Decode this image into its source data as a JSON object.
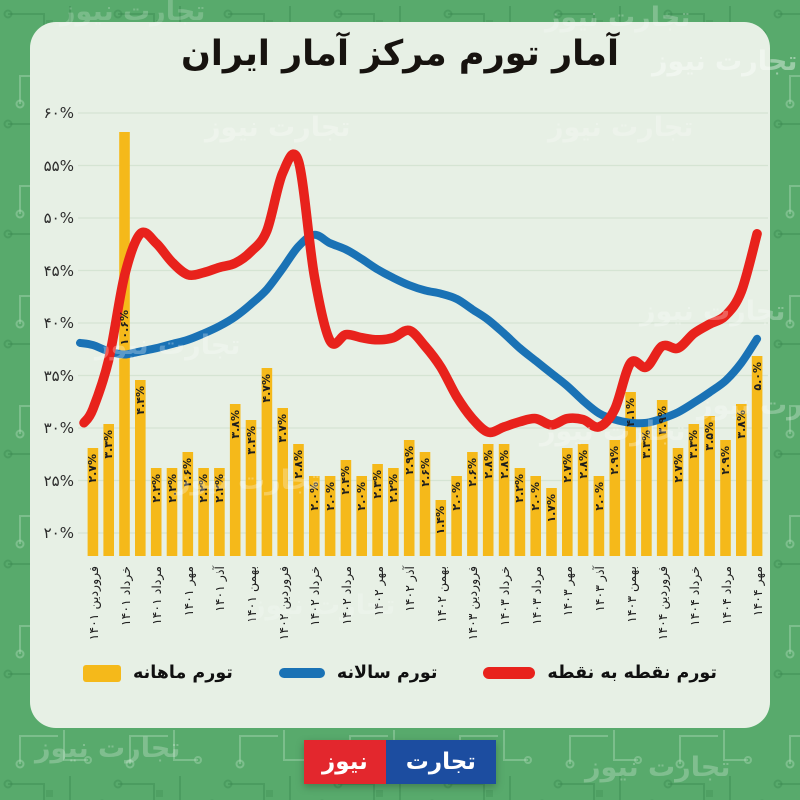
{
  "title": "آمار تورم مرکز آمار ایران",
  "watermark_text": "تجارت نیوز",
  "logo": {
    "news": "نیوز",
    "tejarat": "تجارت"
  },
  "legend": [
    {
      "label": "تورم ماهانه",
      "swatch": "bar",
      "color": "#f5b91a"
    },
    {
      "label": "تورم سالانه",
      "swatch": "line",
      "color": "#1a72b5"
    },
    {
      "label": "تورم نقطه به نقطه",
      "swatch": "line",
      "color": "#e8221c"
    }
  ],
  "colors": {
    "background": "#58aa6c",
    "panel": "#e7f0e5",
    "gridline": "#d5e4d3",
    "bar": "#f5b91a",
    "annual_line": "#1a72b5",
    "point_line": "#e8221c",
    "logo_red": "#e3272d",
    "logo_blue": "#1c4da0"
  },
  "chart_data": {
    "type": "combo-bar-line",
    "title": "آمار تورم مرکز آمار ایران",
    "months_count": 43,
    "x_range_note": "monthly, Farvardin 1401 through Mehr 1404; tick label under every 2nd bar",
    "x_tick_every": 2,
    "x_tick_labels": [
      "فروردین ۱۴۰۱",
      "خرداد ۱۴۰۱",
      "مرداد ۱۴۰۱",
      "مهر ۱۴۰۱",
      "آذر ۱۴۰۱",
      "بهمن ۱۴۰۱",
      "فروردین ۱۴۰۲",
      "خرداد ۱۴۰۲",
      "مرداد ۱۴۰۲",
      "مهر ۱۴۰۲",
      "آذر ۱۴۰۲",
      "بهمن ۱۴۰۲",
      "فروردین ۱۴۰۳",
      "خرداد ۱۴۰۳",
      "مرداد ۱۴۰۳",
      "مهر ۱۴۰۳",
      "آذر ۱۴۰۳",
      "بهمن ۱۴۰۳",
      "فروردین ۱۴۰۴",
      "خرداد ۱۴۰۴",
      "مرداد ۱۴۰۴",
      "مهر ۱۴۰۴"
    ],
    "y_axis": {
      "min": 20,
      "max": 60,
      "step": 5,
      "grid": true,
      "legend_position": "bottom",
      "tick_labels": [
        "۶۰%",
        "۵۵%",
        "۵۰%",
        "۴۵%",
        "۴۰%",
        "۳۵%",
        "۳۰%",
        "۲۵%",
        "۲۰%"
      ],
      "tick_values": [
        60,
        55,
        50,
        45,
        40,
        35,
        30,
        25,
        20
      ]
    },
    "bar_labels": [
      "۲.۷%",
      "۳.۳%",
      "۱۰.۶%",
      "۴.۴%",
      "۲.۲%",
      "۲.۲%",
      "۲.۶%",
      "۲.۲%",
      "۲.۲%",
      "۳.۸%",
      "۳.۴%",
      "۴.۷%",
      "۳.۷%",
      "۲.۸%",
      "۲.۰%",
      "۲.۰%",
      "۲.۴%",
      "۲.۰%",
      "۲.۳%",
      "۲.۲%",
      "۲.۹%",
      "۲.۶%",
      "۱.۴%",
      "۲.۰%",
      "۲.۶%",
      "۲.۸%",
      "۲.۸%",
      "۲.۲%",
      "۲.۰%",
      "۱.۷%",
      "۲.۷%",
      "۲.۸%",
      "۲.۰%",
      "۲.۹%",
      "۴.۱%",
      "۳.۳%",
      "۳.۹%",
      "۲.۷%",
      "۳.۳%",
      "۳.۵%",
      "۲.۹%",
      "۳.۸%",
      "۵.۰%"
    ],
    "series": [
      {
        "name": "تورم ماهانه",
        "type": "bar",
        "color": "#f5b91a",
        "values": [
          2.7,
          3.3,
          10.6,
          4.4,
          2.2,
          2.2,
          2.6,
          2.2,
          2.2,
          3.8,
          3.4,
          4.7,
          3.7,
          2.8,
          2.0,
          2.0,
          2.4,
          2.0,
          2.3,
          2.2,
          2.9,
          2.6,
          1.4,
          2.0,
          2.6,
          2.8,
          2.8,
          2.2,
          2.0,
          1.7,
          2.7,
          2.8,
          2.0,
          2.9,
          4.1,
          3.3,
          3.9,
          2.7,
          3.3,
          3.5,
          2.9,
          3.8,
          5.0
        ]
      },
      {
        "name": "تورم سالانه",
        "type": "line",
        "color": "#1a72b5",
        "values": [
          37.9,
          37.3,
          37.0,
          37.3,
          37.6,
          38.0,
          38.4,
          39.0,
          39.7,
          40.6,
          41.8,
          43.2,
          45.2,
          47.3,
          48.4,
          47.6,
          47.0,
          46.1,
          45.1,
          44.3,
          43.6,
          43.1,
          42.8,
          42.3,
          41.3,
          40.3,
          39.0,
          37.6,
          36.4,
          35.2,
          34.0,
          32.6,
          31.4,
          30.8,
          30.5,
          30.5,
          30.9,
          31.5,
          32.4,
          33.4,
          34.5,
          36.2,
          38.5
        ]
      },
      {
        "name": "تورم نقطه به نقطه",
        "type": "line",
        "color": "#e8221c",
        "values": [
          31.8,
          36.5,
          44.5,
          48.5,
          47.6,
          45.8,
          44.6,
          44.8,
          45.3,
          45.7,
          46.8,
          48.8,
          54.3,
          55.4,
          44.5,
          38.3,
          38.9,
          38.6,
          38.4,
          38.6,
          39.3,
          37.8,
          35.8,
          33.0,
          30.9,
          29.6,
          30.1,
          30.6,
          30.9,
          30.3,
          30.9,
          30.8,
          30.1,
          31.8,
          36.2,
          35.8,
          37.8,
          37.6,
          39.0,
          39.9,
          40.7,
          43.0,
          48.5
        ]
      }
    ],
    "notes": "bars carry Persian-digit percent labels rotated 90°; bars drawn on their own scale below the line axis"
  }
}
